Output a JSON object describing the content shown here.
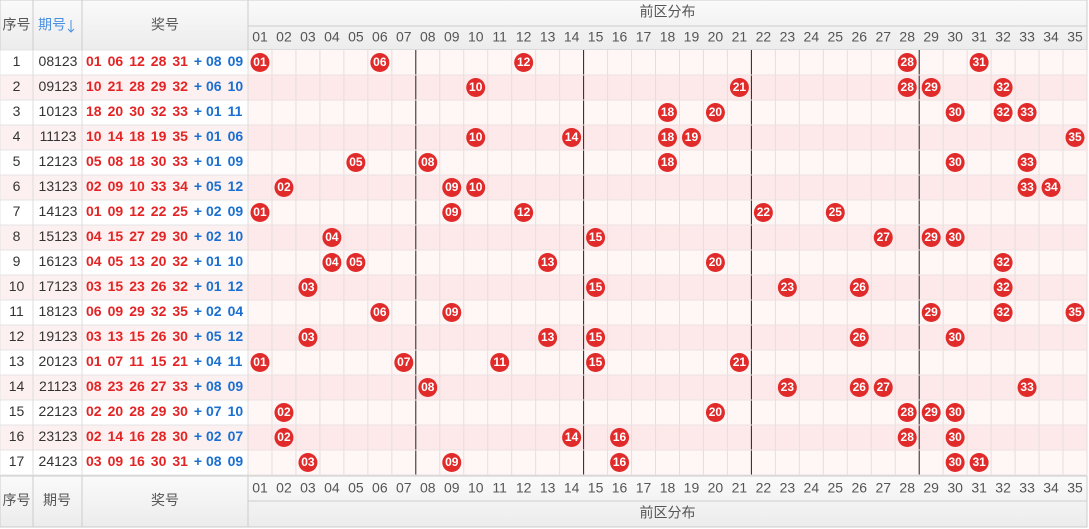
{
  "header": {
    "seq": "序号",
    "issue": "期号",
    "numbers": "奖号",
    "zone": "前区分布"
  },
  "columns": [
    "01",
    "02",
    "03",
    "04",
    "05",
    "06",
    "07",
    "08",
    "09",
    "10",
    "11",
    "12",
    "13",
    "14",
    "15",
    "16",
    "17",
    "18",
    "19",
    "20",
    "21",
    "22",
    "23",
    "24",
    "25",
    "26",
    "27",
    "28",
    "29",
    "30",
    "31",
    "32",
    "33",
    "34",
    "35"
  ],
  "separator": "+",
  "rows": [
    {
      "seq": "1",
      "issue": "08123",
      "front": [
        "01",
        "06",
        "12",
        "28",
        "31"
      ],
      "back": [
        "08",
        "09"
      ]
    },
    {
      "seq": "2",
      "issue": "09123",
      "front": [
        "10",
        "21",
        "28",
        "29",
        "32"
      ],
      "back": [
        "06",
        "10"
      ]
    },
    {
      "seq": "3",
      "issue": "10123",
      "front": [
        "18",
        "20",
        "30",
        "32",
        "33"
      ],
      "back": [
        "01",
        "11"
      ]
    },
    {
      "seq": "4",
      "issue": "11123",
      "front": [
        "10",
        "14",
        "18",
        "19",
        "35"
      ],
      "back": [
        "01",
        "06"
      ]
    },
    {
      "seq": "5",
      "issue": "12123",
      "front": [
        "05",
        "08",
        "18",
        "30",
        "33"
      ],
      "back": [
        "01",
        "09"
      ]
    },
    {
      "seq": "6",
      "issue": "13123",
      "front": [
        "02",
        "09",
        "10",
        "33",
        "34"
      ],
      "back": [
        "05",
        "12"
      ]
    },
    {
      "seq": "7",
      "issue": "14123",
      "front": [
        "01",
        "09",
        "12",
        "22",
        "25"
      ],
      "back": [
        "02",
        "09"
      ]
    },
    {
      "seq": "8",
      "issue": "15123",
      "front": [
        "04",
        "15",
        "27",
        "29",
        "30"
      ],
      "back": [
        "02",
        "10"
      ]
    },
    {
      "seq": "9",
      "issue": "16123",
      "front": [
        "04",
        "05",
        "13",
        "20",
        "32"
      ],
      "back": [
        "01",
        "10"
      ]
    },
    {
      "seq": "10",
      "issue": "17123",
      "front": [
        "03",
        "15",
        "23",
        "26",
        "32"
      ],
      "back": [
        "01",
        "12"
      ]
    },
    {
      "seq": "11",
      "issue": "18123",
      "front": [
        "06",
        "09",
        "29",
        "32",
        "35"
      ],
      "back": [
        "02",
        "04"
      ]
    },
    {
      "seq": "12",
      "issue": "19123",
      "front": [
        "03",
        "13",
        "15",
        "26",
        "30"
      ],
      "back": [
        "05",
        "12"
      ]
    },
    {
      "seq": "13",
      "issue": "20123",
      "front": [
        "01",
        "07",
        "11",
        "15",
        "21"
      ],
      "back": [
        "04",
        "11"
      ]
    },
    {
      "seq": "14",
      "issue": "21123",
      "front": [
        "08",
        "23",
        "26",
        "27",
        "33"
      ],
      "back": [
        "08",
        "09"
      ]
    },
    {
      "seq": "15",
      "issue": "22123",
      "front": [
        "02",
        "20",
        "28",
        "29",
        "30"
      ],
      "back": [
        "07",
        "10"
      ]
    },
    {
      "seq": "16",
      "issue": "23123",
      "front": [
        "02",
        "14",
        "16",
        "28",
        "30"
      ],
      "back": [
        "02",
        "07"
      ]
    },
    {
      "seq": "17",
      "issue": "24123",
      "front": [
        "03",
        "09",
        "16",
        "30",
        "31"
      ],
      "back": [
        "08",
        "09"
      ]
    }
  ]
}
